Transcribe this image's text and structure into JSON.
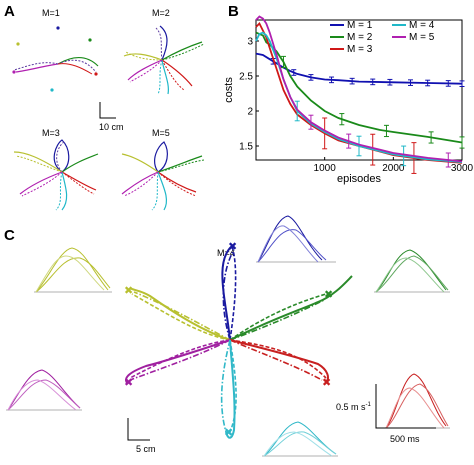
{
  "panels": {
    "a": "A",
    "b": "B",
    "c": "C"
  },
  "panel_a": {
    "subplots": [
      "M=1",
      "M=2",
      "M=3",
      "M=5"
    ],
    "scale_label": "10 cm"
  },
  "panel_c": {
    "title": "M=4",
    "scale_label": "5 cm",
    "velocity_scale_label": "0.5 m s",
    "velocity_scale_sup": "-1",
    "time_scale_label": "500 ms"
  },
  "colors": {
    "m1": "#1010b0",
    "m2": "#1a8a1a",
    "m3": "#d01818",
    "m4": "#20b8c8",
    "m5": "#b020b0",
    "yellow": "#b8c030",
    "green": "#2a8a2a",
    "navy": "#1a1aa0",
    "teal": "#30b8c8",
    "red": "#c82020",
    "purple": "#a020a0"
  },
  "chart_data": {
    "type": "line",
    "xlabel": "episodes",
    "ylabel": "costs",
    "xlim": [
      0,
      3000
    ],
    "ylim": [
      1.3,
      3.3
    ],
    "xticks": [
      "1000",
      "2000",
      "3000"
    ],
    "yticks": [
      "1.5",
      "2",
      "2.5",
      "3"
    ],
    "legend": {
      "placement": "top-right",
      "columns": 2
    },
    "series": [
      {
        "name": "M = 1",
        "color": "#1010b0",
        "x": [
          0,
          100,
          200,
          300,
          400,
          500,
          600,
          800,
          1000,
          1200,
          1500,
          2000,
          2500,
          3000
        ],
        "y": [
          2.82,
          2.8,
          2.74,
          2.68,
          2.62,
          2.57,
          2.53,
          2.48,
          2.45,
          2.44,
          2.42,
          2.41,
          2.4,
          2.39
        ],
        "err_x": [
          250,
          550,
          800,
          1100,
          1400,
          1700,
          1950,
          2250,
          2500,
          2800,
          3000
        ],
        "err": 0.04
      },
      {
        "name": "M = 2",
        "color": "#1a8a1a",
        "x": [
          0,
          100,
          150,
          200,
          300,
          400,
          500,
          600,
          800,
          1000,
          1200,
          1500,
          1800,
          2000,
          2500,
          3000
        ],
        "y": [
          3.12,
          3.08,
          2.98,
          2.95,
          2.85,
          2.7,
          2.5,
          2.35,
          2.15,
          2.0,
          1.9,
          1.8,
          1.73,
          1.7,
          1.63,
          1.55
        ],
        "err_x": [
          400,
          1250,
          1900,
          2550,
          3000
        ],
        "err": 0.08
      },
      {
        "name": "M = 3",
        "color": "#d01818",
        "x": [
          0,
          50,
          100,
          150,
          200,
          300,
          400,
          500,
          600,
          800,
          1000,
          1200,
          1500,
          2000,
          2500,
          3000
        ],
        "y": [
          3.2,
          3.25,
          3.15,
          3.05,
          2.9,
          2.6,
          2.3,
          2.1,
          1.95,
          1.8,
          1.68,
          1.58,
          1.5,
          1.37,
          1.3,
          1.26
        ],
        "err_x": [
          1000,
          1700,
          2300
        ],
        "err": 0.22
      },
      {
        "name": "M = 4",
        "color": "#20b8c8",
        "x": [
          0,
          50,
          100,
          150,
          200,
          300,
          400,
          500,
          600,
          800,
          1000,
          1200,
          1500,
          2000,
          2500,
          3000
        ],
        "y": [
          3.0,
          3.1,
          3.12,
          3.08,
          3.0,
          2.75,
          2.45,
          2.2,
          2.0,
          1.82,
          1.7,
          1.6,
          1.5,
          1.38,
          1.31,
          1.27
        ],
        "err_x": [
          600,
          1500,
          2150
        ],
        "err": 0.14
      },
      {
        "name": "M = 5",
        "color": "#b020b0",
        "x": [
          0,
          50,
          100,
          150,
          200,
          300,
          400,
          500,
          600,
          800,
          1000,
          1200,
          1500,
          2000,
          2500,
          3000
        ],
        "y": [
          3.3,
          3.35,
          3.32,
          3.25,
          3.12,
          2.8,
          2.45,
          2.2,
          2.02,
          1.84,
          1.72,
          1.62,
          1.52,
          1.4,
          1.33,
          1.28
        ],
        "err_x": [
          800,
          1350,
          2800
        ],
        "err": 0.1
      }
    ]
  }
}
